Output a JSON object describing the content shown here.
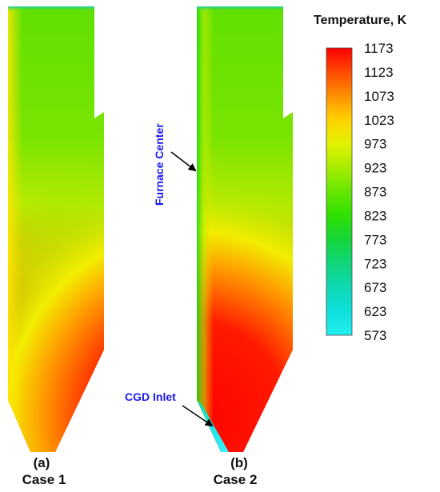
{
  "colorbar": {
    "title": "Temperature, K",
    "ticks": [
      "1173",
      "1123",
      "1073",
      "1023",
      "973",
      "923",
      "873",
      "823",
      "773",
      "723",
      "673",
      "623",
      "573"
    ],
    "colors": [
      "#ff0000",
      "#ff4a00",
      "#ff9000",
      "#ffd200",
      "#e2f200",
      "#a6ec00",
      "#66e600",
      "#2ee000",
      "#15d63a",
      "#10d67a",
      "#0ed8b4",
      "#0ee0dc",
      "#22eeee"
    ]
  },
  "panels": [
    {
      "letter": "(a)",
      "caption": "Case 1"
    },
    {
      "letter": "(b)",
      "caption": "Case 2"
    }
  ],
  "annotations": {
    "furnace_center": "Furnace Center",
    "cgd_inlet": "CGD Inlet",
    "color": "#1a1aee"
  }
}
